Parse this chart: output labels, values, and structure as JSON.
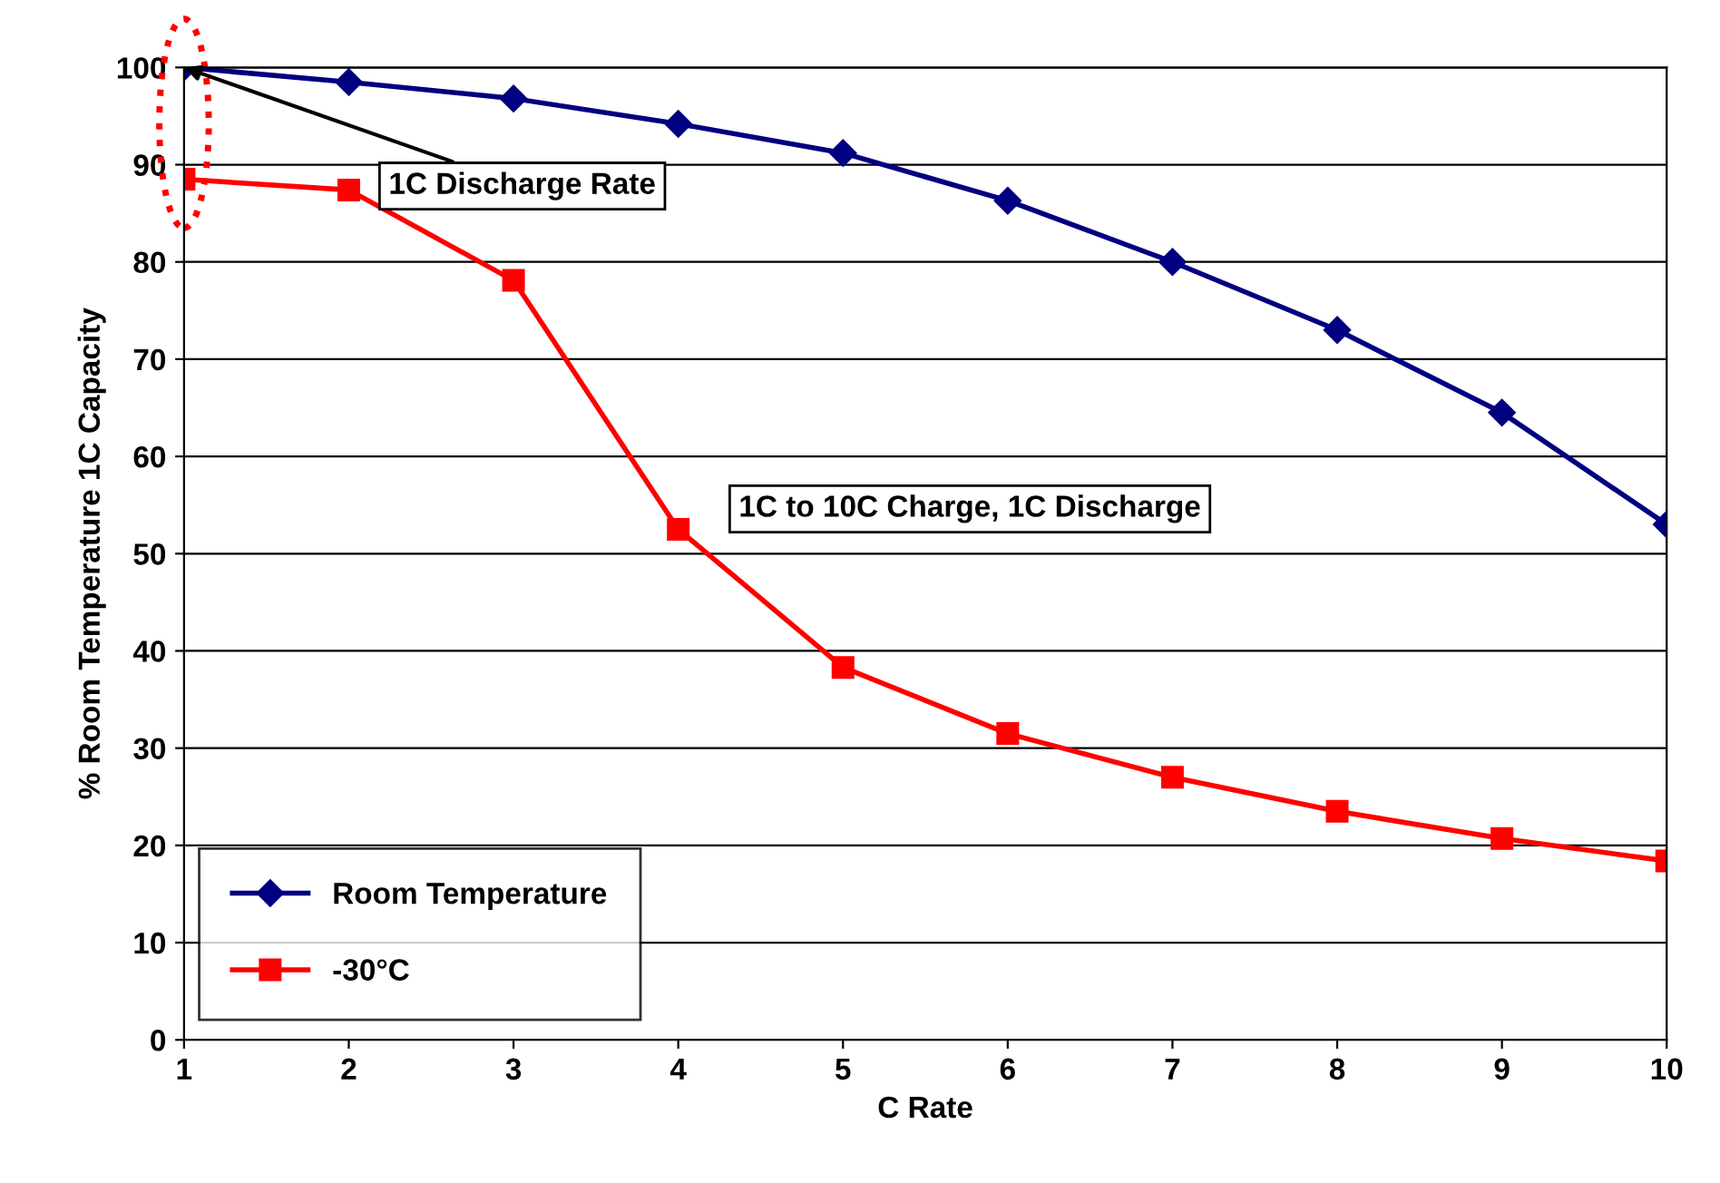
{
  "chart_data": {
    "type": "line",
    "xlabel": "C Rate",
    "ylabel": "% Room Temperature 1C Capacity",
    "x": [
      1,
      2,
      3,
      4,
      5,
      6,
      7,
      8,
      9,
      10
    ],
    "series": [
      {
        "name": "Room Temperature",
        "color": "#000080",
        "marker": "diamond",
        "values": [
          100,
          98.5,
          96.8,
          94.2,
          91.2,
          86.3,
          80,
          73,
          64.5,
          53
        ]
      },
      {
        "name": "-30°C",
        "color": "#ff0000",
        "marker": "square",
        "values": [
          88.5,
          87.4,
          78.1,
          52.5,
          38.3,
          31.5,
          27,
          23.5,
          20.7,
          18.4
        ]
      }
    ],
    "xlim": [
      1,
      10
    ],
    "xticks": [
      1,
      2,
      3,
      4,
      5,
      6,
      7,
      8,
      9,
      10
    ],
    "ylim": [
      0,
      100
    ],
    "yticks": [
      0,
      10,
      20,
      30,
      40,
      50,
      60,
      70,
      80,
      90,
      100
    ],
    "grid": "y",
    "legend": "bottom left",
    "line_style": "solid",
    "annotations": [
      {
        "text": "1C Discharge Rate",
        "x": 1,
        "y": 100
      },
      "1C to 10C Charge, 1C Discharge"
    ]
  }
}
